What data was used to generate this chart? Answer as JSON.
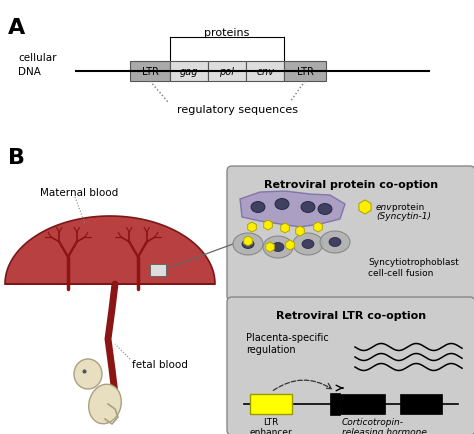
{
  "panel_A_label": "A",
  "panel_B_label": "B",
  "cellular_dna_text": "cellular\nDNA",
  "proteins_text": "proteins",
  "regulatory_text": "regulatory sequences",
  "gene_labels": [
    "LTR",
    "gag",
    "pol",
    "env",
    "LTR"
  ],
  "gene_italic": [
    false,
    true,
    true,
    true,
    false
  ],
  "gene_colors_fill": [
    "#aaaaaa",
    "#dddddd",
    "#dddddd",
    "#dddddd",
    "#aaaaaa"
  ],
  "maternal_blood_text": "Maternal blood",
  "fetal_blood_text": "fetal blood",
  "box1_title": "Retroviral protein co-option",
  "env_protein_text_italic": "env",
  "env_protein_text_normal": " protein",
  "syncytin_text": "(Syncytin-1)",
  "syncytio_text": "Syncytiotrophoblast\ncell-cell fusion",
  "box2_title": "Retroviral LTR co-option",
  "placenta_text": "Placenta-specific\nregulation",
  "ltr_enhancer_text": "LTR\nenhancer",
  "corticotropin_text": "Corticotropin-\nreleasing hormone",
  "bg_color": "#ffffff",
  "box_bg_color": "#cccccc",
  "yellow_color": "#ffff00",
  "placenta_fill": "#b84040",
  "placenta_edge": "#7a1818",
  "villi_color": "#8b1515",
  "fetus_fill": "#e8dfc0",
  "fetus_edge": "#aaa080",
  "cell_purple": "#a090c0",
  "cell_purple_edge": "#7060a0",
  "cell_gray": "#b0b0b0",
  "cell_gray_edge": "#808080",
  "nucleus_color": "#404060"
}
